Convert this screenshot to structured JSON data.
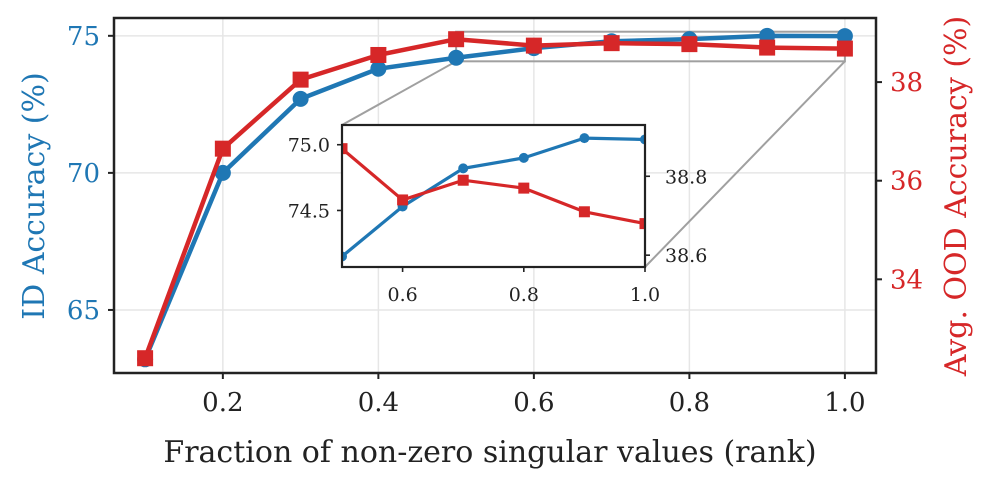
{
  "chart_data": {
    "type": "line",
    "xlabel": "Fraction of non-zero singular values (rank)",
    "ylabel_left": "ID Accuracy (%)",
    "ylabel_right": "Avg. OOD Accuracy (%)",
    "xlim": [
      0.06,
      1.04
    ],
    "ylim_left": [
      62.7,
      75.65
    ],
    "ylim_right": [
      32.1,
      39.3
    ],
    "xticks": [
      0.2,
      0.4,
      0.6,
      0.8,
      1.0
    ],
    "xtick_labels": [
      "0.2",
      "0.4",
      "0.6",
      "0.8",
      "1.0"
    ],
    "yticks_left": [
      65,
      70,
      75
    ],
    "ytick_labels_left": [
      "65",
      "70",
      "75"
    ],
    "yticks_right": [
      34,
      36,
      38
    ],
    "ytick_labels_right": [
      "34",
      "36",
      "38"
    ],
    "grid": true,
    "colors": {
      "id": "#1f77b4",
      "ood": "#d62728",
      "zoom_lines": "#a0a0a0",
      "axes": "#222222",
      "grid": "#e6e6e6"
    },
    "x": [
      0.1,
      0.2,
      0.3,
      0.4,
      0.5,
      0.6,
      0.7,
      0.8,
      0.9,
      1.0
    ],
    "series": [
      {
        "name": "ID Accuracy",
        "axis": "left",
        "marker": "circle",
        "values": [
          63.2,
          70.0,
          72.7,
          73.8,
          74.2,
          74.55,
          74.8,
          74.88,
          75.0,
          74.99
        ]
      },
      {
        "name": "Avg. OOD Accuracy",
        "axis": "right",
        "marker": "square",
        "values": [
          32.4,
          36.65,
          38.05,
          38.55,
          38.87,
          38.74,
          38.79,
          38.77,
          38.7,
          38.68
        ]
      }
    ],
    "inset": {
      "xlim": [
        0.5,
        1.0
      ],
      "ylim_left": [
        74.07,
        75.15
      ],
      "ylim_right": [
        38.57,
        38.93
      ],
      "xticks": [
        0.6,
        0.8,
        1.0
      ],
      "xtick_labels": [
        "0.6",
        "0.8",
        "1.0"
      ],
      "yticks_left": [
        74.5,
        75.0
      ],
      "ytick_labels_left": [
        "74.5",
        "75.0"
      ],
      "yticks_right": [
        38.6,
        38.8
      ],
      "ytick_labels_right": [
        "38.6",
        "38.8"
      ],
      "x": [
        0.5,
        0.6,
        0.7,
        0.8,
        0.9,
        1.0
      ],
      "series": [
        {
          "name": "ID Accuracy",
          "axis": "left",
          "marker": "circle",
          "values": [
            74.15,
            74.53,
            74.82,
            74.9,
            75.05,
            75.04
          ]
        },
        {
          "name": "Avg. OOD Accuracy",
          "axis": "right",
          "marker": "square",
          "values": [
            38.87,
            38.74,
            38.79,
            38.77,
            38.71,
            38.68
          ]
        }
      ],
      "zoom_region": {
        "x": [
          0.5,
          1.0
        ],
        "y_left": [
          74.07,
          75.15
        ]
      }
    }
  }
}
